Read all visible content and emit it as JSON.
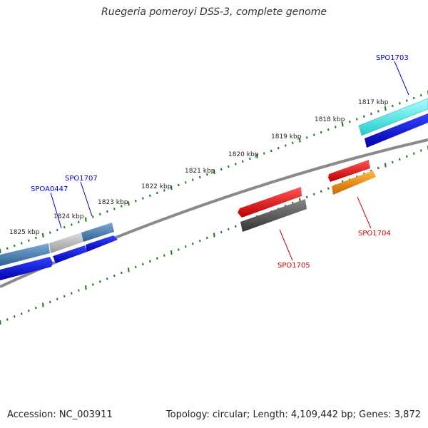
{
  "title": "Ruegeria pomeroyi DSS-3, complete genome",
  "footer": {
    "accession": "Accession: NC_003911",
    "summary": "Topology: circular; Length: 4,109,442 bp; Genes: 3,872"
  },
  "ticks": [
    "1817 kbp",
    "1818 kbp",
    "1819 kbp",
    "1820 kbp",
    "1821 kbp",
    "1822 kbp",
    "1823 kbp",
    "1824 kbp",
    "1825 kbp"
  ],
  "gene_labels": [
    {
      "text": "SPO1703",
      "color": "#0000cc"
    },
    {
      "text": "SPO1707",
      "color": "#0000cc"
    },
    {
      "text": "SPOA0447",
      "color": "#0000cc"
    },
    {
      "text": "SPO1704",
      "color": "#cc0000"
    },
    {
      "text": "SPO1705",
      "color": "#cc0000"
    }
  ],
  "colors": {
    "backbone": "#808080",
    "tick": "#1a7a1a",
    "cyan_feature": "#33dddd",
    "blue_feature": "#0000ee",
    "steel_feature": "#4682b4",
    "red_feature": "#ee0000",
    "orange_feature": "#ff8c00",
    "gray_feature": "#555555"
  }
}
